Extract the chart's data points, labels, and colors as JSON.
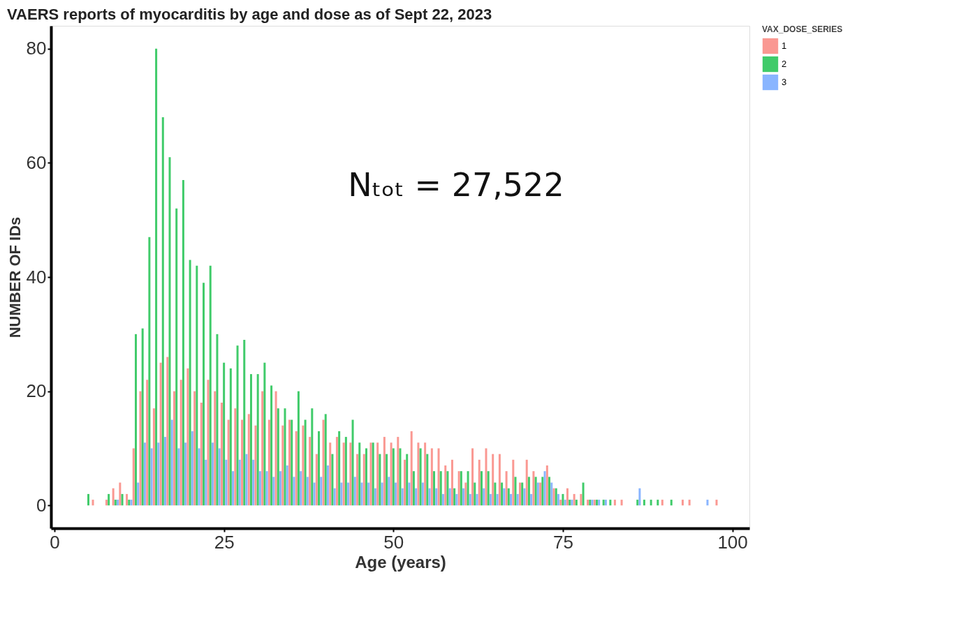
{
  "chart_data": {
    "type": "bar",
    "title": "VAERS reports of myocarditis by age and dose as of Sept 22, 2023",
    "xlabel": "Age (years)",
    "ylabel": "NUMBER OF IDs",
    "legend_title": "VAX_DOSE_SERIES",
    "legend": "right",
    "grid": false,
    "annotations": [
      "Nₜₒₜ = 27,522"
    ],
    "xlim": [
      0,
      102
    ],
    "ylim": [
      -4,
      84
    ],
    "xticks": [
      0,
      25,
      50,
      75,
      100
    ],
    "yticks": [
      0,
      20,
      40,
      60,
      80
    ],
    "x": [
      5,
      6,
      7,
      8,
      9,
      10,
      11,
      12,
      13,
      14,
      15,
      16,
      17,
      18,
      19,
      20,
      21,
      22,
      23,
      24,
      25,
      26,
      27,
      28,
      29,
      30,
      31,
      32,
      33,
      34,
      35,
      36,
      37,
      38,
      39,
      40,
      41,
      42,
      43,
      44,
      45,
      46,
      47,
      48,
      49,
      50,
      51,
      52,
      53,
      54,
      55,
      56,
      57,
      58,
      59,
      60,
      61,
      62,
      63,
      64,
      65,
      66,
      67,
      68,
      69,
      70,
      71,
      72,
      73,
      74,
      75,
      76,
      77,
      78,
      79,
      80,
      81,
      82,
      83,
      84,
      85,
      86,
      87,
      88,
      89,
      90,
      91,
      92,
      93,
      94,
      95,
      96,
      97,
      98
    ],
    "series": [
      {
        "name": "1",
        "color": "#f8766d",
        "values": [
          null,
          1,
          null,
          1,
          3,
          4,
          2,
          10,
          20,
          22,
          17,
          25,
          26,
          20,
          22,
          24,
          20,
          18,
          22,
          20,
          18,
          15,
          17,
          15,
          16,
          14,
          20,
          15,
          20,
          14,
          15,
          13,
          14,
          12,
          9,
          15,
          11,
          12,
          11,
          11,
          9,
          9,
          11,
          11,
          12,
          11,
          12,
          8,
          13,
          11,
          11,
          10,
          10,
          7,
          8,
          6,
          4,
          10,
          8,
          10,
          9,
          9,
          6,
          8,
          4,
          8,
          6,
          4,
          7,
          3,
          1,
          3,
          2,
          2,
          1,
          1,
          null,
          null,
          1,
          1,
          null,
          null,
          null,
          null,
          null,
          1,
          null,
          null,
          1,
          1,
          null,
          null,
          null,
          1
        ]
      },
      {
        "name": "2",
        "color": "#00ba38",
        "values": [
          2,
          null,
          null,
          2,
          1,
          2,
          1,
          30,
          31,
          47,
          80,
          68,
          61,
          52,
          57,
          43,
          42,
          39,
          42,
          30,
          25,
          24,
          28,
          29,
          23,
          23,
          25,
          21,
          17,
          17,
          15,
          20,
          15,
          17,
          13,
          16,
          9,
          13,
          12,
          15,
          11,
          10,
          11,
          9,
          9,
          10,
          10,
          9,
          6,
          10,
          9,
          6,
          6,
          6,
          3,
          6,
          6,
          4,
          6,
          6,
          4,
          4,
          3,
          5,
          4,
          5,
          5,
          5,
          5,
          3,
          2,
          1,
          1,
          4,
          1,
          1,
          1,
          1,
          null,
          null,
          null,
          1,
          1,
          1,
          1,
          null,
          1,
          null,
          null,
          null,
          null,
          null,
          null,
          null
        ]
      },
      {
        "name": "3",
        "color": "#619cff",
        "values": [
          null,
          null,
          null,
          null,
          1,
          null,
          1,
          4,
          11,
          10,
          11,
          12,
          15,
          10,
          11,
          13,
          10,
          8,
          11,
          10,
          8,
          6,
          8,
          9,
          8,
          6,
          6,
          5,
          6,
          7,
          5,
          6,
          5,
          4,
          5,
          7,
          3,
          4,
          4,
          5,
          4,
          4,
          3,
          4,
          5,
          4,
          3,
          4,
          3,
          4,
          3,
          3,
          2,
          3,
          2,
          3,
          2,
          2,
          3,
          2,
          2,
          3,
          2,
          2,
          3,
          2,
          4,
          6,
          4,
          2,
          1,
          1,
          null,
          null,
          1,
          1,
          1,
          null,
          null,
          null,
          null,
          3,
          null,
          null,
          null,
          null,
          null,
          null,
          null,
          null,
          null,
          1,
          null,
          null
        ]
      }
    ]
  }
}
